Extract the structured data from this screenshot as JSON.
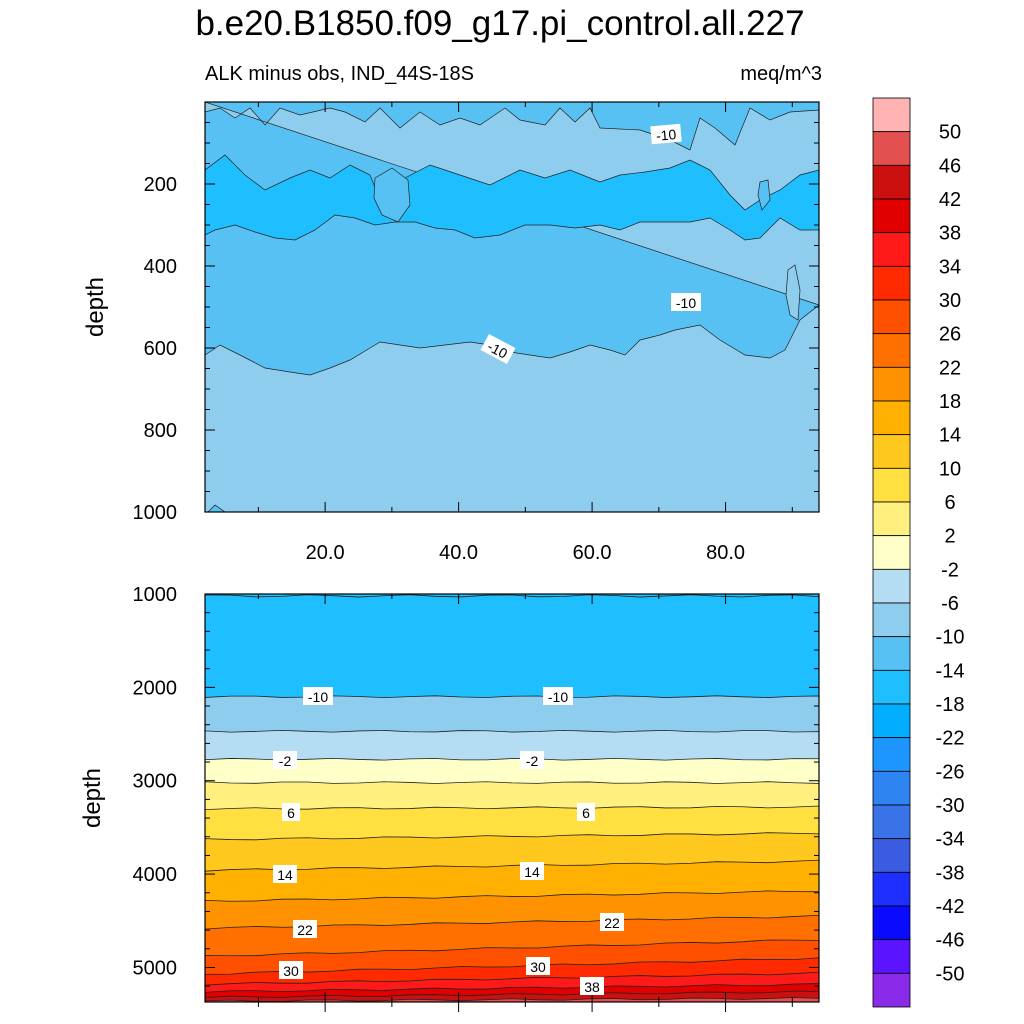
{
  "header": {
    "title": "b.e20.B1850.f09_g17.pi_control.all.227",
    "subtitle_left": "ALK minus obs, IND_44S-18S",
    "subtitle_right": "meq/m^3"
  },
  "chart_data": [
    {
      "type": "contour",
      "panel": "upper",
      "title": "",
      "xlabel": "",
      "ylabel": "depth",
      "xlim": [
        2,
        94
      ],
      "ylim": [
        1000,
        0
      ],
      "x_ticks": [
        "20.0",
        "40.0",
        "60.0",
        "80.0"
      ],
      "y_ticks": [
        "200",
        "400",
        "600",
        "800",
        "1000"
      ],
      "contour_labels": [
        "-10",
        "-10",
        "-10"
      ],
      "bands": [
        {
          "range": "-10 to -6",
          "depth_range": [
            5,
            80
          ]
        },
        {
          "range": "-14 to -10",
          "depth_range": [
            80,
            160
          ]
        },
        {
          "range": "-18 to -14",
          "depth_range": [
            160,
            320
          ]
        },
        {
          "range": "-14 to -10",
          "depth_range": [
            320,
            640
          ]
        },
        {
          "range": "-10 to -6",
          "depth_range": [
            640,
            1000
          ]
        }
      ]
    },
    {
      "type": "contour",
      "panel": "lower",
      "title": "",
      "xlabel": "",
      "ylabel": "depth",
      "xlim": [
        2,
        94
      ],
      "ylim": [
        5370,
        1000
      ],
      "y_ticks": [
        "1000",
        "2000",
        "3000",
        "4000",
        "5000"
      ],
      "contour_labels": [
        "-10",
        "-10",
        "-2",
        "-2",
        "6",
        "6",
        "14",
        "14",
        "22",
        "22",
        "30",
        "30",
        "38"
      ],
      "contour_levels": [
        -10,
        -6,
        -2,
        2,
        6,
        10,
        14,
        18,
        22,
        26,
        30,
        34,
        38,
        42,
        46
      ],
      "contour_depths_left": [
        2100,
        2470,
        2770,
        3020,
        3300,
        3630,
        3960,
        4290,
        4580,
        4880,
        5070,
        5180,
        5260,
        5320,
        5360
      ],
      "contour_depths_right": [
        2100,
        2470,
        2770,
        3020,
        3280,
        3560,
        3860,
        4180,
        4450,
        4700,
        4900,
        5060,
        5180,
        5260,
        5330
      ],
      "top_level": -14,
      "top_depth": 1020
    }
  ],
  "colorbar": {
    "labels": [
      "50",
      "46",
      "42",
      "38",
      "34",
      "30",
      "26",
      "22",
      "18",
      "14",
      "10",
      "6",
      "2",
      "-2",
      "-6",
      "-10",
      "-14",
      "-18",
      "-22",
      "-26",
      "-30",
      "-34",
      "-38",
      "-42",
      "-46",
      "-50"
    ],
    "colors": [
      "#FFB3B3",
      "#E25050",
      "#CC1010",
      "#E00000",
      "#FF1A1A",
      "#FF2A00",
      "#FF5000",
      "#FF7000",
      "#FF9200",
      "#FFB000",
      "#FFC81E",
      "#FFE040",
      "#FFF080",
      "#FFFFC8",
      "#B4DCF2",
      "#8FCDEE",
      "#56C1F2",
      "#1EBEFF",
      "#00ADFF",
      "#1E96FF",
      "#2E85F2",
      "#3A73E8",
      "#3A5CE0",
      "#1E2EFF",
      "#0A0AFF",
      "#5A14FF",
      "#8A2BEA"
    ]
  }
}
